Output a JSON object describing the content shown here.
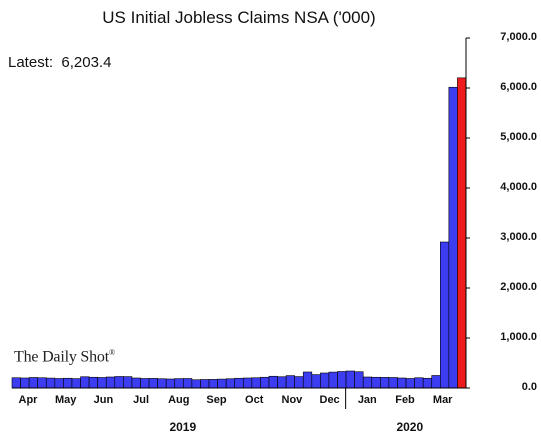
{
  "chart_data": {
    "type": "bar",
    "title": "US Initial Jobless Claims NSA ('000)",
    "annotation": {
      "label": "Latest:",
      "value": "6,203.4"
    },
    "source_logo": "The Daily Shot",
    "xlabel": "",
    "ylabel": "",
    "ylim": [
      0,
      7000
    ],
    "y_ticks": [
      "0.0",
      "1,000.0",
      "2,000.0",
      "3,000.0",
      "4,000.0",
      "5,000.0",
      "6,000.0",
      "7,000.0"
    ],
    "y_axis_side": "right",
    "grid": false,
    "month_labels": [
      "Apr",
      "May",
      "Jun",
      "Jul",
      "Aug",
      "Sep",
      "Oct",
      "Nov",
      "Dec",
      "Jan",
      "Feb",
      "Mar"
    ],
    "year_labels": [
      "2019",
      "2020"
    ],
    "values": [
      205,
      200,
      210,
      205,
      198,
      190,
      195,
      188,
      225,
      215,
      210,
      220,
      230,
      228,
      200,
      190,
      192,
      185,
      180,
      188,
      190,
      165,
      170,
      172,
      178,
      185,
      195,
      200,
      205,
      215,
      235,
      225,
      248,
      228,
      320,
      268,
      300,
      318,
      330,
      340,
      325,
      220,
      215,
      212,
      210,
      200,
      190,
      205,
      195,
      250,
      2920,
      6015,
      6203
    ],
    "colors": {
      "bar": "#3c3cf0",
      "latest_bar": "#ee1c1c",
      "bar_edge": "#000000"
    }
  }
}
